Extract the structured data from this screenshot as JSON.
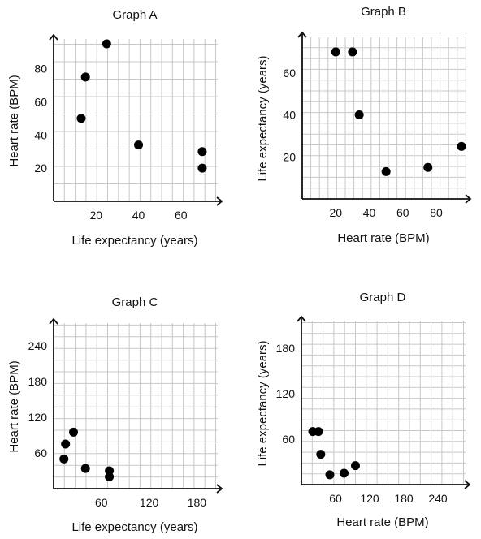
{
  "chart_data": [
    {
      "type": "scatter",
      "title": "Graph A",
      "xlabel": "Life expectancy (years)",
      "ylabel": "Heart rate (BPM)",
      "xlim": [
        0,
        75
      ],
      "ylim": [
        0,
        95
      ],
      "grid": true,
      "xticks": [
        20,
        40,
        60
      ],
      "yticks": [
        20,
        40,
        60,
        80
      ],
      "x": [
        13,
        15,
        25,
        40,
        70,
        70
      ],
      "y": [
        50,
        75,
        95,
        34,
        30,
        20
      ]
    },
    {
      "type": "scatter",
      "title": "Graph B",
      "xlabel": "Heart rate (BPM)",
      "ylabel": "Life expectancy (years)",
      "xlim": [
        0,
        95
      ],
      "ylim": [
        0,
        75
      ],
      "grid": true,
      "xticks": [
        20,
        40,
        60,
        80
      ],
      "yticks": [
        20,
        40,
        60
      ],
      "x": [
        20,
        30,
        34,
        50,
        75,
        95
      ],
      "y": [
        70,
        70,
        40,
        13,
        15,
        25
      ]
    },
    {
      "type": "scatter",
      "title": "Graph C",
      "xlabel": "Life expectancy (years)",
      "ylabel": "Heart rate (BPM)",
      "xlim": [
        0,
        200
      ],
      "ylim": [
        0,
        270
      ],
      "grid": true,
      "xticks": [
        60,
        120,
        180
      ],
      "yticks": [
        60,
        120,
        180,
        240
      ],
      "x": [
        13,
        15,
        25,
        40,
        70,
        70
      ],
      "y": [
        50,
        75,
        95,
        34,
        30,
        20
      ]
    },
    {
      "type": "scatter",
      "title": "Graph D",
      "xlabel": "Heart rate (BPM)",
      "ylabel": "Life expectancy (years)",
      "xlim": [
        0,
        280
      ],
      "ylim": [
        0,
        210
      ],
      "grid": true,
      "xticks": [
        60,
        120,
        180,
        240
      ],
      "yticks": [
        60,
        120,
        180
      ],
      "x": [
        20,
        30,
        34,
        50,
        75,
        95
      ],
      "y": [
        70,
        70,
        40,
        13,
        15,
        25
      ]
    }
  ]
}
